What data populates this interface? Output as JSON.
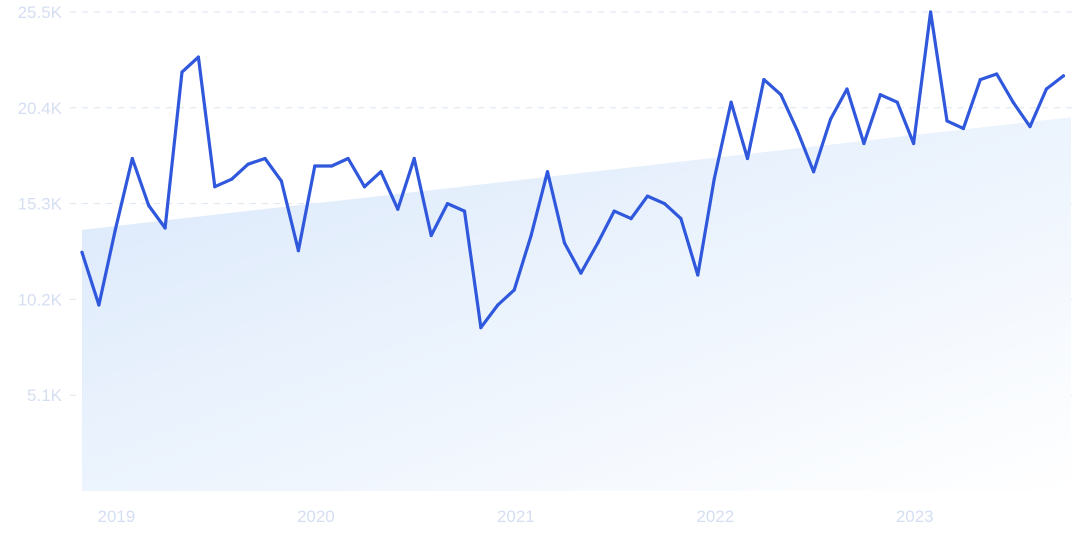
{
  "chart_data": {
    "type": "line",
    "title": "",
    "xlabel": "",
    "ylabel": "",
    "ylim": [
      0,
      25500
    ],
    "xlim": [
      "2018-10-30",
      "2023-10-14"
    ],
    "grid": true,
    "trend_area": true,
    "y_ticks": [
      {
        "value": 5100,
        "label": "5.1K"
      },
      {
        "value": 10200,
        "label": "10.2K"
      },
      {
        "value": 15300,
        "label": "15.3K"
      },
      {
        "value": 20400,
        "label": "20.4K"
      },
      {
        "value": 25500,
        "label": "25.5K"
      }
    ],
    "x_ticks": [
      {
        "value": "2019-01-01",
        "label": "2019"
      },
      {
        "value": "2020-01-01",
        "label": "2020"
      },
      {
        "value": "2021-01-01",
        "label": "2021"
      },
      {
        "value": "2022-01-01",
        "label": "2022"
      },
      {
        "value": "2023-01-01",
        "label": "2023"
      }
    ],
    "trend": {
      "start": {
        "x": "2018-10-30",
        "y": 13900
      },
      "end": {
        "x": "2023-10-14",
        "y": 19900
      }
    },
    "series": [
      {
        "x": [
          "2018-10-30",
          "2018-11-30",
          "2018-12-30",
          "2019-01-30",
          "2019-03-01",
          "2019-03-31",
          "2019-05-01",
          "2019-05-31",
          "2019-06-30",
          "2019-07-31",
          "2019-08-30",
          "2019-09-30",
          "2019-10-30",
          "2019-11-30",
          "2019-12-30",
          "2020-01-30",
          "2020-02-29",
          "2020-03-30",
          "2020-04-29",
          "2020-05-30",
          "2020-06-29",
          "2020-07-30",
          "2020-08-29",
          "2020-09-29",
          "2020-10-29",
          "2020-11-29",
          "2020-12-29",
          "2021-01-29",
          "2021-02-28",
          "2021-03-31",
          "2021-04-30",
          "2021-05-31",
          "2021-06-30",
          "2021-07-31",
          "2021-08-30",
          "2021-09-30",
          "2021-10-30",
          "2021-11-30",
          "2021-12-30",
          "2022-01-30",
          "2022-03-01",
          "2022-03-31",
          "2022-05-01",
          "2022-05-31",
          "2022-06-30",
          "2022-07-31",
          "2022-08-30",
          "2022-09-30",
          "2022-10-30",
          "2022-11-30",
          "2022-12-30",
          "2023-01-30",
          "2023-03-01",
          "2023-03-31",
          "2023-05-01",
          "2023-05-31",
          "2023-06-30",
          "2023-07-31",
          "2023-08-30",
          "2023-09-30"
        ],
        "values": [
          12700,
          9900,
          13900,
          17700,
          15200,
          14000,
          22300,
          23100,
          16200,
          16600,
          17400,
          17700,
          16500,
          12800,
          17300,
          17300,
          17700,
          16200,
          17000,
          15000,
          17700,
          13600,
          15300,
          14900,
          8700,
          9900,
          10700,
          13600,
          17000,
          13200,
          11600,
          13200,
          14900,
          14500,
          15700,
          15300,
          14500,
          11500,
          16600,
          20700,
          17700,
          21900,
          21100,
          19200,
          17000,
          19800,
          21400,
          18500,
          21100,
          20700,
          18500,
          25500,
          19700,
          19300,
          21900,
          22200,
          20700,
          19400,
          21400,
          22100
        ]
      }
    ],
    "colors": {
      "line": "#3058dc",
      "area_top": "#d9e8fb",
      "area_bottom": "#ffffff",
      "grid": "#dce6f1",
      "tick_label": "#d5dff2"
    }
  }
}
